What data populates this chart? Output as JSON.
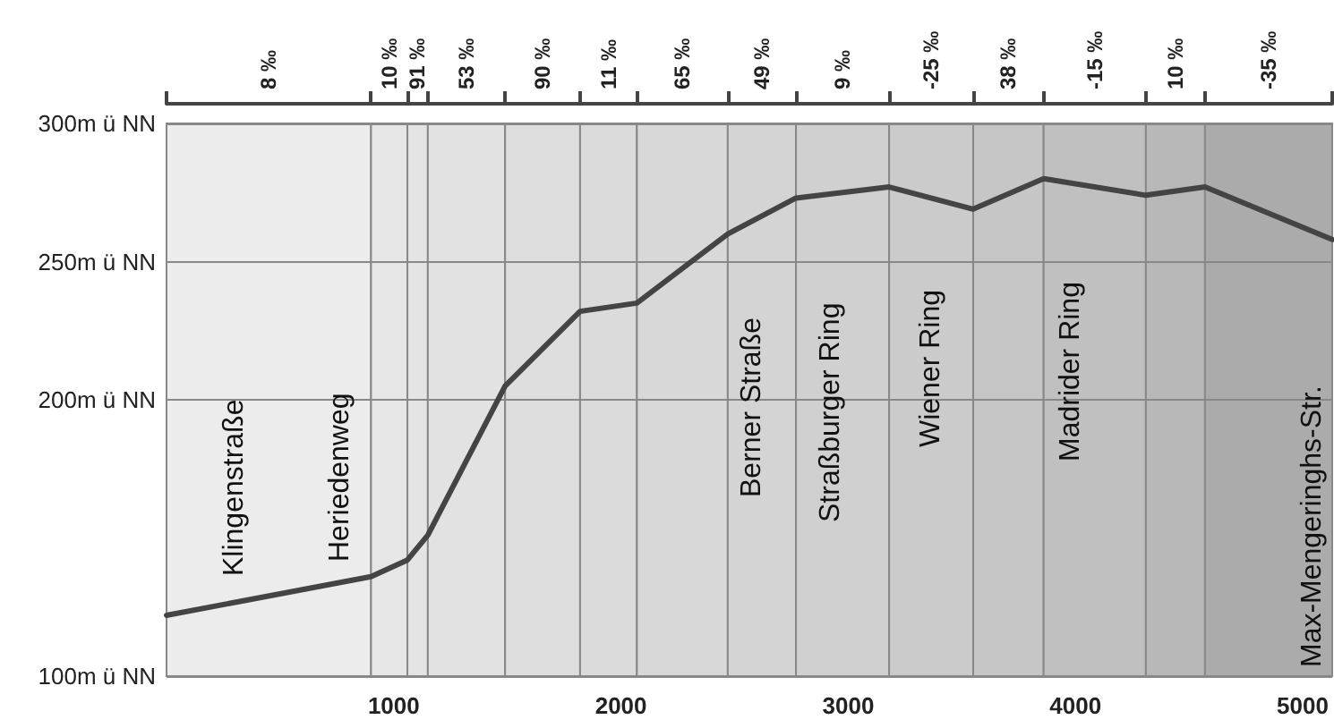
{
  "chart_data": {
    "type": "line",
    "x": [
      0,
      900,
      1060,
      1150,
      1490,
      1820,
      2070,
      2470,
      2770,
      3180,
      3550,
      3860,
      4310,
      4570,
      5130
    ],
    "series": [
      {
        "color": "#444444",
        "values": [
          122,
          136,
          142,
          151,
          205,
          232,
          235,
          260,
          273,
          277,
          269,
          280,
          274,
          277,
          258
        ]
      }
    ],
    "xlim": [
      0,
      5130
    ],
    "xticks": [
      1000,
      2000,
      3000,
      4000,
      5000
    ],
    "ylim": [
      100,
      300
    ],
    "yticks": [
      {
        "value": 100,
        "label": "100m ü NN"
      },
      {
        "value": 200,
        "label": "200m ü NN"
      },
      {
        "value": 250,
        "label": "250m ü NN"
      },
      {
        "value": 300,
        "label": "300m ü NN"
      }
    ],
    "bands": [
      {
        "axis": "x",
        "from": 0,
        "to": 900,
        "label": "8 ‰",
        "color": "#ececec"
      },
      {
        "axis": "x",
        "from": 900,
        "to": 1060,
        "label": "10 ‰",
        "color": "#e6e6e6"
      },
      {
        "axis": "x",
        "from": 1060,
        "to": 1150,
        "label": "91 ‰",
        "color": "#e4e4e4"
      },
      {
        "axis": "x",
        "from": 1150,
        "to": 1490,
        "label": "53 ‰",
        "color": "#e2e2e2"
      },
      {
        "axis": "x",
        "from": 1490,
        "to": 1820,
        "label": "90 ‰",
        "color": "#dedede"
      },
      {
        "axis": "x",
        "from": 1820,
        "to": 2070,
        "label": "11 ‰",
        "color": "#dbdbdb"
      },
      {
        "axis": "x",
        "from": 2070,
        "to": 2470,
        "label": "65 ‰",
        "color": "#d8d8d8"
      },
      {
        "axis": "x",
        "from": 2470,
        "to": 2770,
        "label": "49 ‰",
        "color": "#d4d4d4"
      },
      {
        "axis": "x",
        "from": 2770,
        "to": 3180,
        "label": "9 ‰",
        "color": "#d0d0d0"
      },
      {
        "axis": "x",
        "from": 3180,
        "to": 3550,
        "label": "-25 ‰",
        "color": "#cbcbcb"
      },
      {
        "axis": "x",
        "from": 3550,
        "to": 3860,
        "label": "38 ‰",
        "color": "#c6c6c6"
      },
      {
        "axis": "x",
        "from": 3860,
        "to": 4310,
        "label": "-15 ‰",
        "color": "#c0c0c0"
      },
      {
        "axis": "x",
        "from": 4310,
        "to": 4570,
        "label": "10 ‰",
        "color": "#b8b8b8"
      },
      {
        "axis": "x",
        "from": 4570,
        "to": 5130,
        "label": "-35 ‰",
        "color": "#ababab"
      }
    ],
    "annotations": [
      "Klingenstraße",
      "Heriedenweg",
      "Berner Straße",
      "Straßburger Ring",
      "Wiener Ring",
      "Madrider Ring",
      "Max-Mengeringhs-Str."
    ],
    "grid": "y",
    "marker": "none",
    "line_style": "solid"
  }
}
